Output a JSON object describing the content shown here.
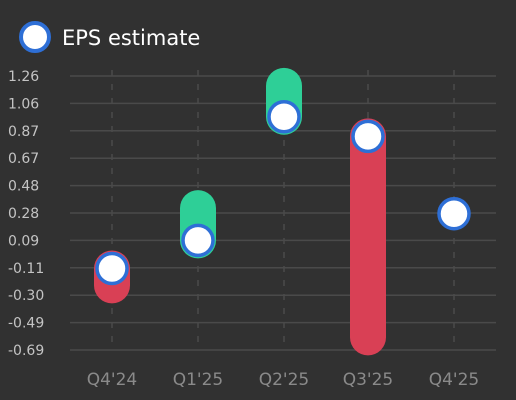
{
  "chart_data": {
    "type": "eps-surprise",
    "legend": {
      "label": "EPS estimate",
      "placement": "top-left"
    },
    "categories": [
      "Q4'24",
      "Q1'25",
      "Q2'25",
      "Q3'25",
      "Q4'25"
    ],
    "yticks": [
      "1.26",
      "1.06",
      "0.87",
      "0.67",
      "0.48",
      "0.28",
      "0.09",
      "-0.11",
      "-0.30",
      "-0.49",
      "-0.69"
    ],
    "ylim": [
      -0.69,
      1.26
    ],
    "grid": true,
    "estimates": [
      -0.11,
      0.09,
      0.97,
      0.83,
      0.28
    ],
    "actuals": [
      -0.23,
      0.32,
      1.19,
      -0.6,
      null
    ],
    "colors": {
      "background": "#313131",
      "grid": "#4a4a4a",
      "beat": "#2ecf97",
      "miss": "#d94055",
      "marker_fill": "#ffffff",
      "marker_stroke": "#2e6fd6"
    }
  }
}
